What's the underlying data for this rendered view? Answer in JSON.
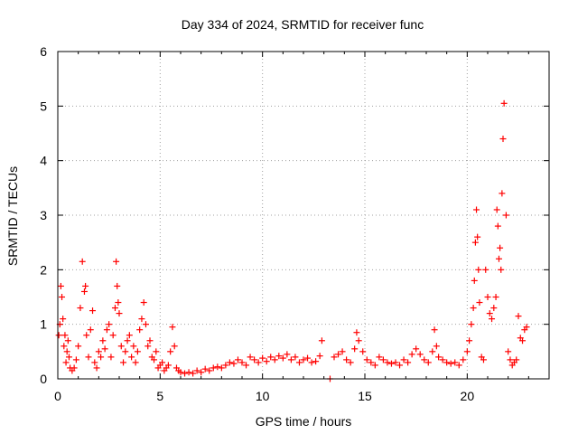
{
  "chart_data": {
    "type": "scatter",
    "title": "Day 334 of 2024, SRMTID for receiver func",
    "xlabel": "GPS time / hours",
    "ylabel": "SRMTID / TECUs",
    "xlim": [
      0,
      24
    ],
    "ylim": [
      0,
      6
    ],
    "xticks": [
      0,
      5,
      10,
      15,
      20
    ],
    "yticks": [
      0,
      1,
      2,
      3,
      4,
      5,
      6
    ],
    "xtick_labels": [
      "0",
      "5",
      "10",
      "15",
      "20"
    ],
    "ytick_labels": [
      "0",
      "1",
      "2",
      "3",
      "4",
      "5",
      "6"
    ],
    "grid": true,
    "marker": "+",
    "series": [
      {
        "name": "SRMTID",
        "color": "#ff0000",
        "x": [
          0.05,
          0.1,
          0.15,
          0.2,
          0.25,
          0.3,
          0.35,
          0.4,
          0.45,
          0.5,
          0.55,
          0.6,
          0.7,
          0.8,
          0.9,
          1.0,
          1.1,
          1.2,
          1.3,
          1.35,
          1.4,
          1.5,
          1.6,
          1.7,
          1.8,
          1.9,
          2.0,
          2.1,
          2.2,
          2.3,
          2.4,
          2.5,
          2.6,
          2.7,
          2.8,
          2.85,
          2.9,
          2.95,
          3.0,
          3.1,
          3.2,
          3.3,
          3.4,
          3.5,
          3.6,
          3.7,
          3.8,
          3.9,
          4.0,
          4.1,
          4.2,
          4.3,
          4.4,
          4.5,
          4.6,
          4.7,
          4.8,
          4.9,
          5.0,
          5.1,
          5.2,
          5.3,
          5.4,
          5.5,
          5.6,
          5.7,
          5.8,
          5.9,
          6.0,
          6.2,
          6.4,
          6.6,
          6.8,
          7.0,
          7.2,
          7.4,
          7.6,
          7.8,
          8.0,
          8.2,
          8.4,
          8.6,
          8.8,
          9.0,
          9.2,
          9.4,
          9.6,
          9.8,
          10.0,
          10.2,
          10.4,
          10.6,
          10.8,
          11.0,
          11.2,
          11.4,
          11.6,
          11.8,
          12.0,
          12.2,
          12.4,
          12.6,
          12.8,
          12.9,
          13.3,
          13.5,
          13.7,
          13.9,
          14.1,
          14.3,
          14.5,
          14.6,
          14.7,
          14.9,
          15.1,
          15.3,
          15.5,
          15.7,
          15.9,
          16.1,
          16.3,
          16.5,
          16.7,
          16.9,
          17.1,
          17.3,
          17.5,
          17.7,
          17.9,
          18.1,
          18.3,
          18.4,
          18.5,
          18.6,
          18.8,
          19.0,
          19.2,
          19.4,
          19.6,
          19.8,
          20.0,
          20.1,
          20.2,
          20.3,
          20.35,
          20.4,
          20.45,
          20.5,
          20.55,
          20.6,
          20.7,
          20.8,
          20.9,
          21.0,
          21.1,
          21.2,
          21.3,
          21.4,
          21.45,
          21.5,
          21.55,
          21.6,
          21.65,
          21.7,
          21.75,
          21.8,
          21.9,
          22.0,
          22.1,
          22.2,
          22.3,
          22.4,
          22.5,
          22.6,
          22.7,
          22.8,
          22.9
        ],
        "y": [
          0.8,
          1.0,
          1.7,
          1.5,
          1.1,
          0.6,
          0.8,
          0.3,
          0.5,
          0.7,
          0.4,
          0.2,
          0.15,
          0.2,
          0.35,
          0.6,
          1.3,
          2.15,
          1.6,
          1.7,
          0.8,
          0.4,
          0.9,
          1.25,
          0.3,
          0.2,
          0.5,
          0.4,
          0.7,
          0.55,
          0.9,
          1.0,
          0.4,
          0.8,
          1.3,
          2.15,
          1.7,
          1.4,
          1.2,
          0.6,
          0.3,
          0.5,
          0.7,
          0.8,
          0.4,
          0.6,
          0.3,
          0.5,
          0.9,
          1.1,
          1.4,
          1.0,
          0.6,
          0.7,
          0.4,
          0.35,
          0.5,
          0.2,
          0.25,
          0.3,
          0.15,
          0.2,
          0.25,
          0.5,
          0.95,
          0.6,
          0.2,
          0.15,
          0.12,
          0.1,
          0.12,
          0.1,
          0.15,
          0.12,
          0.18,
          0.15,
          0.2,
          0.22,
          0.2,
          0.25,
          0.3,
          0.28,
          0.35,
          0.3,
          0.25,
          0.4,
          0.35,
          0.3,
          0.38,
          0.32,
          0.4,
          0.35,
          0.42,
          0.38,
          0.45,
          0.35,
          0.4,
          0.3,
          0.35,
          0.38,
          0.3,
          0.32,
          0.42,
          0.7,
          0.0,
          0.4,
          0.45,
          0.5,
          0.35,
          0.3,
          0.55,
          0.85,
          0.7,
          0.5,
          0.35,
          0.3,
          0.25,
          0.4,
          0.35,
          0.3,
          0.28,
          0.3,
          0.25,
          0.35,
          0.3,
          0.45,
          0.55,
          0.45,
          0.35,
          0.3,
          0.5,
          0.9,
          0.6,
          0.4,
          0.35,
          0.3,
          0.28,
          0.3,
          0.25,
          0.35,
          0.5,
          0.7,
          1.0,
          1.3,
          1.8,
          2.5,
          3.1,
          2.6,
          2.0,
          1.4,
          0.4,
          0.35,
          2.0,
          1.5,
          1.2,
          1.1,
          1.3,
          1.5,
          3.1,
          2.8,
          2.2,
          2.4,
          2.0,
          3.4,
          4.4,
          5.05,
          3.0,
          0.5,
          0.35,
          0.25,
          0.3,
          0.35,
          1.15,
          0.75,
          0.7,
          0.9,
          0.95
        ]
      }
    ]
  }
}
